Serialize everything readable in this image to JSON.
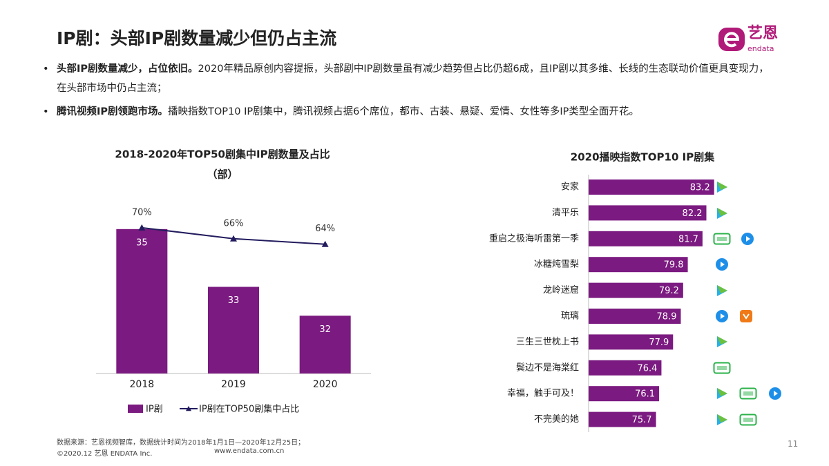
{
  "header": {
    "title": "IP剧：头部IP剧数量减少但仍占主流",
    "logo_cn": "艺恩",
    "logo_en": "endata"
  },
  "bullets": [
    {
      "bold": "头部IP剧数量减少，占位依旧。",
      "text": "2020年精品原创内容提振，头部剧中IP剧数量虽有减少趋势但占比仍超6成，且IP剧以其多维、长线的生态联动价值更具变现力，在头部市场中仍占主流；"
    },
    {
      "bold": "腾讯视频IP剧领跑市场。",
      "text": "播映指数TOP10 IP剧集中，腾讯视频占据6个席位，都市、古装、悬疑、爱情、女性等多IP类型全面开花。"
    }
  ],
  "chart_data": [
    {
      "type": "bar",
      "title": "2018-2020年TOP50剧集中IP剧数量及占比",
      "subtitle": "（部）",
      "categories": [
        "2018",
        "2019",
        "2020"
      ],
      "series": [
        {
          "name": "IP剧",
          "color": "#7b1a80",
          "values": [
            35,
            33,
            32
          ]
        },
        {
          "name": "IP剧在TOP50剧集中占比",
          "type": "line",
          "axis": "y2",
          "color": "#221c5e",
          "values": [
            70,
            66,
            64
          ],
          "value_labels": [
            "70%",
            "66%",
            "64%"
          ]
        }
      ],
      "ylim": [
        30,
        36
      ],
      "y2lim": [
        17,
        80
      ],
      "legend": "bottom"
    },
    {
      "type": "bar",
      "orientation": "horizontal",
      "title": "2020播映指数TOP10 IP剧集",
      "categories": [
        "安家",
        "清平乐",
        "重启之极海听雷第一季",
        "冰糖炖雪梨",
        "龙岭迷窟",
        "琉璃",
        "三生三世枕上书",
        "鬓边不是海棠红",
        "幸福，触手可及！",
        "不完美的她"
      ],
      "values": [
        83.2,
        82.2,
        81.7,
        79.8,
        79.2,
        78.9,
        77.9,
        76.4,
        76.1,
        75.7
      ],
      "color": "#7b1a80",
      "xlim": [
        67,
        90
      ]
    }
  ],
  "footer": {
    "source": "数据来源：艺恩视频智库，数据统计时间为2018年1月1日—2020年12月25日；",
    "copyright": "©2020.12 艺恩 ENDATA Inc.",
    "url": "www.endata.com.cn",
    "page": "11"
  }
}
